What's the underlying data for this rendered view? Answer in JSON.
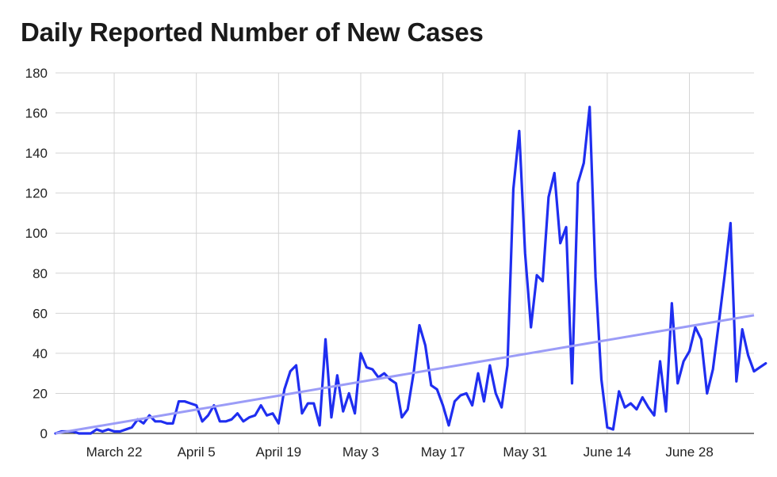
{
  "chart_data": {
    "type": "line",
    "title": "Daily Reported Number of New Cases",
    "xlabel": "",
    "ylabel": "",
    "ylim": [
      0,
      180
    ],
    "y_ticks": [
      0,
      20,
      40,
      60,
      80,
      100,
      120,
      140,
      160,
      180
    ],
    "x_tick_labels": [
      {
        "label": "March 22",
        "day": 10
      },
      {
        "label": "April 5",
        "day": 24
      },
      {
        "label": "April 19",
        "day": 38
      },
      {
        "label": "May 3",
        "day": 52
      },
      {
        "label": "May 17",
        "day": 66
      },
      {
        "label": "May 31",
        "day": 80
      },
      {
        "label": "June 14",
        "day": 94
      },
      {
        "label": "June 28",
        "day": 108
      }
    ],
    "x_range_days": [
      0,
      119
    ],
    "grid": "vertical and horizontal",
    "series": [
      {
        "color": "#1f2ef0",
        "values": [
          0,
          1,
          1,
          1,
          0,
          0,
          0,
          2,
          1,
          2,
          1,
          1,
          2,
          3,
          7,
          5,
          9,
          6,
          6,
          5,
          5,
          16,
          16,
          15,
          14,
          6,
          9,
          14,
          6,
          6,
          7,
          10,
          6,
          8,
          9,
          14,
          9,
          10,
          5,
          22,
          31,
          34,
          10,
          15,
          15,
          4,
          47,
          8,
          29,
          11,
          20,
          10,
          40,
          33,
          32,
          28,
          30,
          27,
          25,
          8,
          12,
          30,
          54,
          44,
          24,
          22,
          14,
          4,
          16,
          19,
          20,
          14,
          30,
          16,
          34,
          20,
          13,
          34,
          122,
          151,
          90,
          53,
          79,
          76,
          118,
          130,
          95,
          103,
          25,
          125,
          135,
          163,
          78,
          27,
          3,
          2,
          21,
          13,
          15,
          12,
          18,
          13,
          9,
          36,
          11,
          65,
          25,
          36,
          41,
          53,
          47,
          20,
          32,
          55,
          79,
          105,
          26,
          52,
          39,
          31,
          33,
          35
        ]
      },
      {
        "color": "#9b9cf7",
        "trendline": true,
        "values": [
          0,
          59
        ]
      }
    ]
  }
}
